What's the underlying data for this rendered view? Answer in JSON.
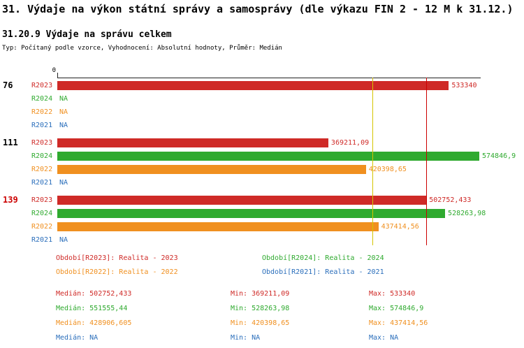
{
  "title": "31. Výdaje na výkon státní správy a samosprávy (dle výkazu FIN 2 - 12 M k 31.12.)",
  "subtitle": "31.20.9 Výdaje na správu celkem",
  "meta": "Typ: Počítaný podle vzorce, Vyhodnocení: Absolutní hodnoty, Průměr: Medián",
  "colors": {
    "R2023": "#cf2a27",
    "R2024": "#2faa2f",
    "R2022": "#f09020",
    "R2021": "#2a6ebb",
    "axis": "#222222",
    "ref_line_yellow": "#d4c400",
    "ref_line_red": "#cc0000",
    "group_highlight": "#cc0000",
    "group_default": "#000000"
  },
  "chart_data": {
    "type": "bar",
    "orientation": "horizontal",
    "x_axis": {
      "min": 0,
      "max": 574846.9,
      "tick_labels": [
        "0"
      ]
    },
    "series_order": [
      "R2023",
      "R2024",
      "R2022",
      "R2021"
    ],
    "groups": [
      {
        "label": "76",
        "highlight": false,
        "bars": [
          {
            "series": "R2023",
            "value": 533340,
            "display": "533340"
          },
          {
            "series": "R2024",
            "value": null,
            "display": "NA"
          },
          {
            "series": "R2022",
            "value": null,
            "display": "NA"
          },
          {
            "series": "R2021",
            "value": null,
            "display": "NA"
          }
        ]
      },
      {
        "label": "111",
        "highlight": false,
        "bars": [
          {
            "series": "R2023",
            "value": 369211.09,
            "display": "369211,09"
          },
          {
            "series": "R2024",
            "value": 574846.9,
            "display": "574846,9"
          },
          {
            "series": "R2022",
            "value": 420398.65,
            "display": "420398,65"
          },
          {
            "series": "R2021",
            "value": null,
            "display": "NA"
          }
        ]
      },
      {
        "label": "139",
        "highlight": true,
        "bars": [
          {
            "series": "R2023",
            "value": 502752.433,
            "display": "502752,433"
          },
          {
            "series": "R2024",
            "value": 528263.98,
            "display": "528263,98"
          },
          {
            "series": "R2022",
            "value": 437414.56,
            "display": "437414,56"
          },
          {
            "series": "R2021",
            "value": null,
            "display": "NA"
          }
        ]
      }
    ],
    "reference_lines": [
      {
        "value": 428906.605,
        "color_key": "ref_line_yellow"
      },
      {
        "value": 502752.433,
        "color_key": "ref_line_red"
      }
    ],
    "legend": [
      {
        "series": "R2023",
        "label": "Období[R2023]: Realita - 2023",
        "col": 0,
        "row": 0
      },
      {
        "series": "R2024",
        "label": "Období[R2024]: Realita - 2024",
        "col": 1,
        "row": 0
      },
      {
        "series": "R2022",
        "label": "Období[R2022]: Realita - 2022",
        "col": 0,
        "row": 1
      },
      {
        "series": "R2021",
        "label": "Období[R2021]: Realita - 2021",
        "col": 1,
        "row": 1
      }
    ],
    "stats_labels": {
      "median": "Medián",
      "min": "Min",
      "max": "Max"
    },
    "stats": [
      {
        "series": "R2023",
        "median": "502752,433",
        "min": "369211,09",
        "max": "533340"
      },
      {
        "series": "R2024",
        "median": "551555,44",
        "min": "528263,98",
        "max": "574846,9"
      },
      {
        "series": "R2022",
        "median": "428906,605",
        "min": "420398,65",
        "max": "437414,56"
      },
      {
        "series": "R2021",
        "median": "NA",
        "min": "NA",
        "max": "NA"
      }
    ]
  }
}
